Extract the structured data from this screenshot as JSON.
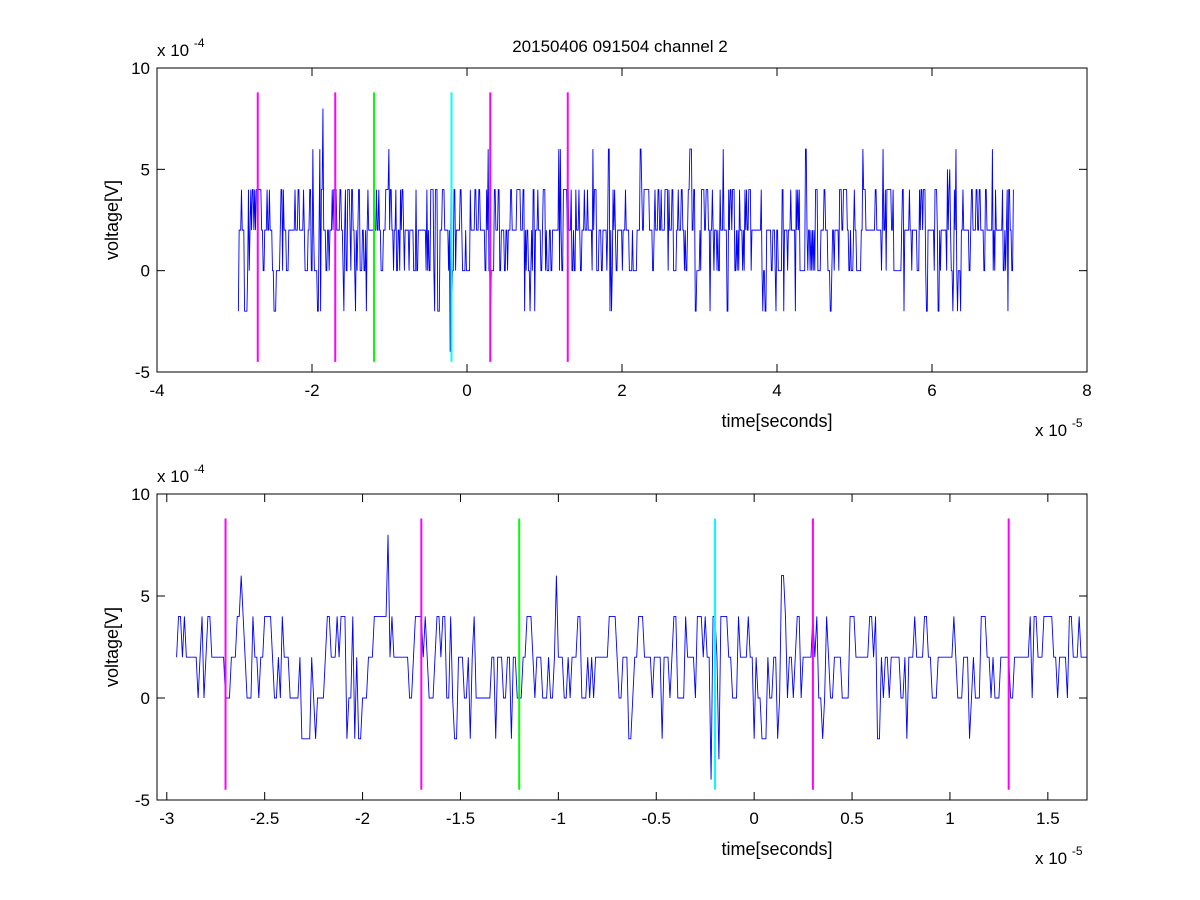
{
  "figure": {
    "title": "20150406 091504 channel 2"
  },
  "chart_data": [
    {
      "type": "line",
      "title": "20150406 091504 channel 2",
      "xlabel": "time[seconds]",
      "ylabel": "voltage[V]",
      "x_exponent_label": "x 10",
      "x_exponent": "-5",
      "y_exponent_label": "x 10",
      "y_exponent": "-4",
      "xlim": [
        -4,
        8
      ],
      "ylim": [
        -5,
        10
      ],
      "xticks": [
        -4,
        -2,
        0,
        2,
        4,
        6,
        8
      ],
      "xtick_labels": [
        "-4",
        "-2",
        "0",
        "2",
        "4",
        "6",
        "8"
      ],
      "yticks": [
        -5,
        0,
        5,
        10
      ],
      "ytick_labels": [
        "-5",
        "0",
        "5",
        "10"
      ],
      "grid": false,
      "signal": {
        "color": "#0000ff",
        "x_start": -2.95,
        "x_end": 7.05,
        "quantization_step": 2,
        "baseline": 2,
        "sample_count": 1000,
        "peaks": [
          {
            "x": -1.86,
            "y": 8
          },
          {
            "x": -1.01,
            "y": 6
          },
          {
            "x": -1.3,
            "y": -2
          },
          {
            "x": -0.22,
            "y": -4
          },
          {
            "x": 5.11,
            "y": 6
          },
          {
            "x": 5.37,
            "y": 6
          },
          {
            "x": 6.31,
            "y": 6
          },
          {
            "x": 6.2,
            "y": 5
          },
          {
            "x": 6.23,
            "y": 5
          },
          {
            "x": 0.87,
            "y": -2
          },
          {
            "x": 3.14,
            "y": -2
          },
          {
            "x": 6.37,
            "y": -2
          }
        ]
      },
      "markers": [
        {
          "x": -2.7,
          "color": "#ff00ff",
          "y_range": [
            -4.5,
            8.8
          ]
        },
        {
          "x": -1.7,
          "color": "#ff00ff",
          "y_range": [
            -4.5,
            8.8
          ]
        },
        {
          "x": -1.2,
          "color": "#00ff00",
          "y_range": [
            -4.5,
            8.8
          ]
        },
        {
          "x": -0.2,
          "color": "#00ffff",
          "y_range": [
            -4.5,
            8.8
          ]
        },
        {
          "x": 0.3,
          "color": "#ff00ff",
          "y_range": [
            -4.5,
            8.8
          ]
        },
        {
          "x": 1.3,
          "color": "#ff00ff",
          "y_range": [
            -4.5,
            8.8
          ]
        }
      ]
    },
    {
      "type": "line",
      "title": "",
      "xlabel": "time[seconds]",
      "ylabel": "voltage[V]",
      "x_exponent_label": "x 10",
      "x_exponent": "-5",
      "y_exponent_label": "x 10",
      "y_exponent": "-4",
      "xlim": [
        -3.05,
        1.7
      ],
      "ylim": [
        -5,
        10
      ],
      "xticks": [
        -3,
        -2.5,
        -2,
        -1.5,
        -1,
        -0.5,
        0,
        0.5,
        1,
        1.5
      ],
      "xtick_labels": [
        "-3",
        "-2.5",
        "-2",
        "-1.5",
        "-1",
        "-0.5",
        "0",
        "0.5",
        "1",
        "1.5"
      ],
      "yticks": [
        -5,
        0,
        5,
        10
      ],
      "ytick_labels": [
        "-5",
        "0",
        "5",
        "10"
      ],
      "grid": false,
      "signal": {
        "color": "#0000ff",
        "x_start": -2.95,
        "x_end": 1.7,
        "quantization_step": 2,
        "baseline": 2,
        "sample_count": 466,
        "peaks": [
          {
            "x": -1.87,
            "y": 8
          },
          {
            "x": -1.01,
            "y": 6
          },
          {
            "x": -1.32,
            "y": -2
          },
          {
            "x": -1.24,
            "y": -2
          },
          {
            "x": -0.22,
            "y": -4
          },
          {
            "x": -0.18,
            "y": -3
          },
          {
            "x": -0.47,
            "y": -2
          },
          {
            "x": 0.35,
            "y": -2
          },
          {
            "x": 1.1,
            "y": -2
          }
        ]
      },
      "markers": [
        {
          "x": -2.7,
          "color": "#ff00ff",
          "y_range": [
            -4.5,
            8.8
          ]
        },
        {
          "x": -1.7,
          "color": "#ff00ff",
          "y_range": [
            -4.5,
            8.8
          ]
        },
        {
          "x": -1.2,
          "color": "#00ff00",
          "y_range": [
            -4.5,
            8.8
          ]
        },
        {
          "x": -0.2,
          "color": "#00ffff",
          "y_range": [
            -4.5,
            8.8
          ]
        },
        {
          "x": 0.3,
          "color": "#ff00ff",
          "y_range": [
            -4.5,
            8.8
          ]
        },
        {
          "x": 1.3,
          "color": "#ff00ff",
          "y_range": [
            -4.5,
            8.8
          ]
        }
      ]
    }
  ]
}
